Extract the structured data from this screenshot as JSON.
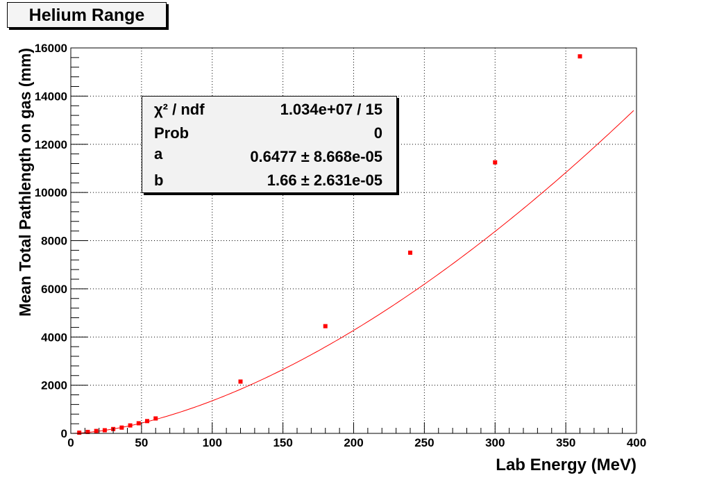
{
  "chart_data": {
    "type": "scatter",
    "title": "Helium Range",
    "xlabel": "Lab Energy (MeV)",
    "ylabel": "Mean Total Pathlength on gas (mm)",
    "xlim": [
      0,
      400
    ],
    "ylim": [
      0,
      16000
    ],
    "x_ticks": [
      0,
      50,
      100,
      150,
      200,
      250,
      300,
      350,
      400
    ],
    "y_ticks": [
      0,
      2000,
      4000,
      6000,
      8000,
      10000,
      12000,
      14000,
      16000
    ],
    "grid": true,
    "series": [
      {
        "type": "scatter",
        "color": "#ff0000",
        "points": [
          {
            "x": 6,
            "y": 30
          },
          {
            "x": 12,
            "y": 60
          },
          {
            "x": 18,
            "y": 100
          },
          {
            "x": 24,
            "y": 130
          },
          {
            "x": 30,
            "y": 180
          },
          {
            "x": 36,
            "y": 240
          },
          {
            "x": 42,
            "y": 330
          },
          {
            "x": 48,
            "y": 420
          },
          {
            "x": 54,
            "y": 510
          },
          {
            "x": 60,
            "y": 620
          },
          {
            "x": 120,
            "y": 2150
          },
          {
            "x": 180,
            "y": 4450
          },
          {
            "x": 240,
            "y": 7500
          },
          {
            "x": 300,
            "y": 11250
          },
          {
            "x": 360,
            "y": 15650
          }
        ]
      },
      {
        "type": "fit",
        "color": "#ff0000",
        "formula_params": {
          "a": 0.6477,
          "b": 1.66
        },
        "x_range": [
          0,
          398
        ]
      }
    ],
    "stats": {
      "chi2": {
        "label": "χ² / ndf",
        "value": "1.034e+07 / 15"
      },
      "prob": {
        "label": "Prob",
        "value": "0"
      },
      "a": {
        "label": "a",
        "value": "0.6477 ± 8.668e-05"
      },
      "b": {
        "label": "b",
        "value": "1.66 ± 2.631e-05"
      }
    }
  }
}
